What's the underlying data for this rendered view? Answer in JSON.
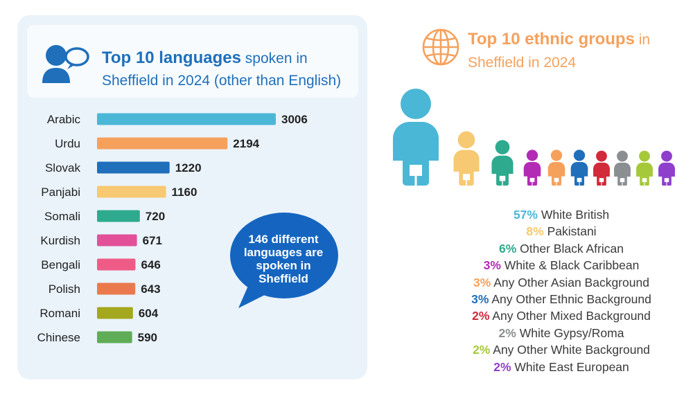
{
  "languages": {
    "title_bold": "Top 10 languages",
    "title_rest": "spoken in Sheffield in 2024 (other than English)",
    "callout": "146 different languages are spoken in Sheffield",
    "bar_colors": [
      "#4bb7d6",
      "#f5a15c",
      "#1f6fba",
      "#f6c972",
      "#2eaa8e",
      "#e2509a",
      "#ef5b87",
      "#ea7a4e",
      "#a3a81e",
      "#5fad56"
    ]
  },
  "ethnic": {
    "title_bold": "Top 10 ethnic groups",
    "title_rest_1": "in",
    "title_rest_2": "Sheffield in 2024",
    "items": [
      {
        "pct": "57%",
        "label": "White British",
        "color": "#4bb7d6"
      },
      {
        "pct": "8%",
        "label": "Pakistani",
        "color": "#f6c972"
      },
      {
        "pct": "6%",
        "label": "Other Black African",
        "color": "#2eaa8e"
      },
      {
        "pct": "3%",
        "label": "White & Black Caribbean",
        "color": "#b32bb5"
      },
      {
        "pct": "3%",
        "label": "Any Other Asian Background",
        "color": "#f5a15c"
      },
      {
        "pct": "3%",
        "label": "Any Other Ethnic Background",
        "color": "#1f6fba"
      },
      {
        "pct": "2%",
        "label": "Any Other Mixed Background",
        "color": "#d12a3a"
      },
      {
        "pct": "2%",
        "label": "White Gypsy/Roma",
        "color": "#8c8f92"
      },
      {
        "pct": "2%",
        "label": "Any Other White Background",
        "color": "#a6c93a"
      },
      {
        "pct": "2%",
        "label": "White East European",
        "color": "#8e3fcb"
      }
    ]
  },
  "chart_data": [
    {
      "type": "bar",
      "orientation": "horizontal",
      "title": "Top 10 languages spoken in Sheffield in 2024 (other than English)",
      "categories": [
        "Arabic",
        "Urdu",
        "Slovak",
        "Panjabi",
        "Somali",
        "Kurdish",
        "Bengali",
        "Polish",
        "Romani",
        "Chinese"
      ],
      "values": [
        3006,
        2194,
        1220,
        1160,
        720,
        671,
        646,
        643,
        604,
        590
      ],
      "value_labels": [
        "3006",
        "2194",
        "1220",
        "1160",
        "720",
        "671",
        "646",
        "643",
        "604",
        "590"
      ],
      "xlim": [
        0,
        3006
      ],
      "grid": false,
      "legend": "none"
    },
    {
      "type": "pictogram",
      "title": "Top 10 ethnic groups in Sheffield in 2024",
      "categories": [
        "White British",
        "Pakistani",
        "Other Black African",
        "White & Black Caribbean",
        "Any Other Asian Background",
        "Any Other Ethnic Background",
        "Any Other Mixed Background",
        "White Gypsy/Roma",
        "Any Other White Background",
        "White East European"
      ],
      "values": [
        57,
        8,
        6,
        3,
        3,
        3,
        2,
        2,
        2,
        2
      ],
      "unit": "%"
    }
  ]
}
